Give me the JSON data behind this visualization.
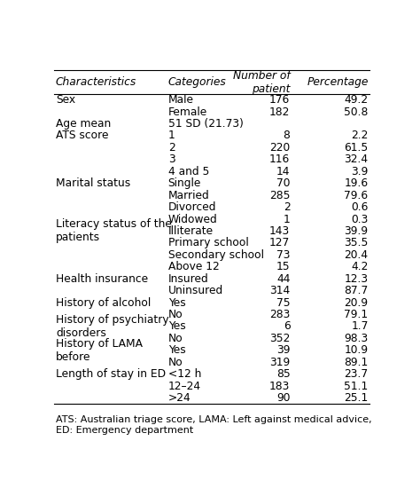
{
  "title_row": [
    "Characteristics",
    "Categories",
    "Number of\npatient",
    "Percentage"
  ],
  "groups": [
    {
      "char": "Sex",
      "char_lines": 1,
      "rows": [
        [
          "Male",
          "176",
          "49.2"
        ],
        [
          "Female",
          "182",
          "50.8"
        ]
      ]
    },
    {
      "char": "Age mean",
      "char_lines": 1,
      "rows": [
        [
          "51 SD (21.73)",
          "",
          ""
        ]
      ]
    },
    {
      "char": "ATS score",
      "char_lines": 1,
      "rows": [
        [
          "1",
          "8",
          "2.2"
        ],
        [
          "2",
          "220",
          "61.5"
        ],
        [
          "3",
          "116",
          "32.4"
        ],
        [
          "4 and 5",
          "14",
          "3.9"
        ]
      ]
    },
    {
      "char": "Marital status",
      "char_lines": 1,
      "rows": [
        [
          "Single",
          "70",
          "19.6"
        ],
        [
          "Married",
          "285",
          "79.6"
        ],
        [
          "Divorced",
          "2",
          "0.6"
        ],
        [
          "Widowed",
          "1",
          "0.3"
        ]
      ]
    },
    {
      "char": "Literacy status of the\npatients",
      "char_lines": 2,
      "rows": [
        [
          "Illiterate",
          "143",
          "39.9"
        ],
        [
          "Primary school",
          "127",
          "35.5"
        ],
        [
          "Secondary school",
          "73",
          "20.4"
        ],
        [
          "Above 12",
          "15",
          "4.2"
        ]
      ]
    },
    {
      "char": "Health insurance",
      "char_lines": 1,
      "rows": [
        [
          "Insured",
          "44",
          "12.3"
        ],
        [
          "Uninsured",
          "314",
          "87.7"
        ]
      ]
    },
    {
      "char": "History of alcohol",
      "char_lines": 1,
      "rows": [
        [
          "Yes",
          "75",
          "20.9"
        ],
        [
          "No",
          "283",
          "79.1"
        ]
      ]
    },
    {
      "char": "History of psychiatry\ndisorders",
      "char_lines": 2,
      "rows": [
        [
          "Yes",
          "6",
          "1.7"
        ],
        [
          "No",
          "352",
          "98.3"
        ]
      ]
    },
    {
      "char": "History of LAMA\nbefore",
      "char_lines": 2,
      "rows": [
        [
          "Yes",
          "39",
          "10.9"
        ],
        [
          "No",
          "319",
          "89.1"
        ]
      ]
    },
    {
      "char": "Length of stay in ED",
      "char_lines": 1,
      "rows": [
        [
          "<12 h",
          "85",
          "23.7"
        ],
        [
          "12–24",
          "183",
          "51.1"
        ],
        [
          ">24",
          "90",
          "25.1"
        ]
      ]
    }
  ],
  "footnote": "ATS: Australian triage score, LAMA: Left against medical advice,\nED: Emergency department",
  "header_line_color": "#000000",
  "bg_color": "#ffffff",
  "text_color": "#000000",
  "font_size": 8.8,
  "header_font_size": 8.8,
  "footnote_font_size": 8.0
}
